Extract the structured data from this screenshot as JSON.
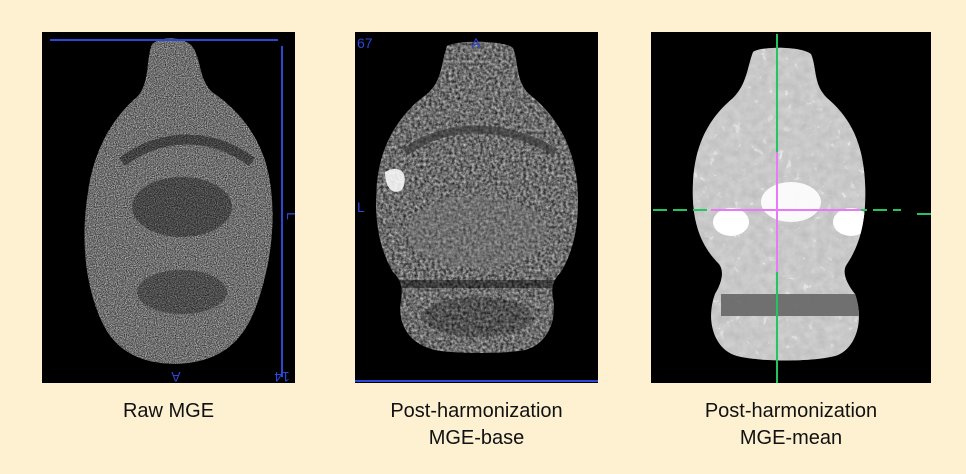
{
  "panels": [
    {
      "caption_lines": [
        "Raw MGE"
      ],
      "overlay": {
        "orientation_label": "A",
        "side_label": "L",
        "corner_label": "14"
      }
    },
    {
      "caption_lines": [
        "Post-harmonization",
        "MGE-base"
      ],
      "overlay": {
        "slice_number": "67",
        "orientation_label": "A",
        "side_label": "L"
      }
    },
    {
      "caption_lines": [
        "Post-harmonization",
        "MGE-mean"
      ],
      "overlay": {}
    }
  ],
  "colors": {
    "background": "#fdf1d2",
    "panel_background": "#000000",
    "overlay_blue": "#2a47d8",
    "crosshair_green": "#22c55e",
    "crosshair_magenta": "#e879f9"
  }
}
